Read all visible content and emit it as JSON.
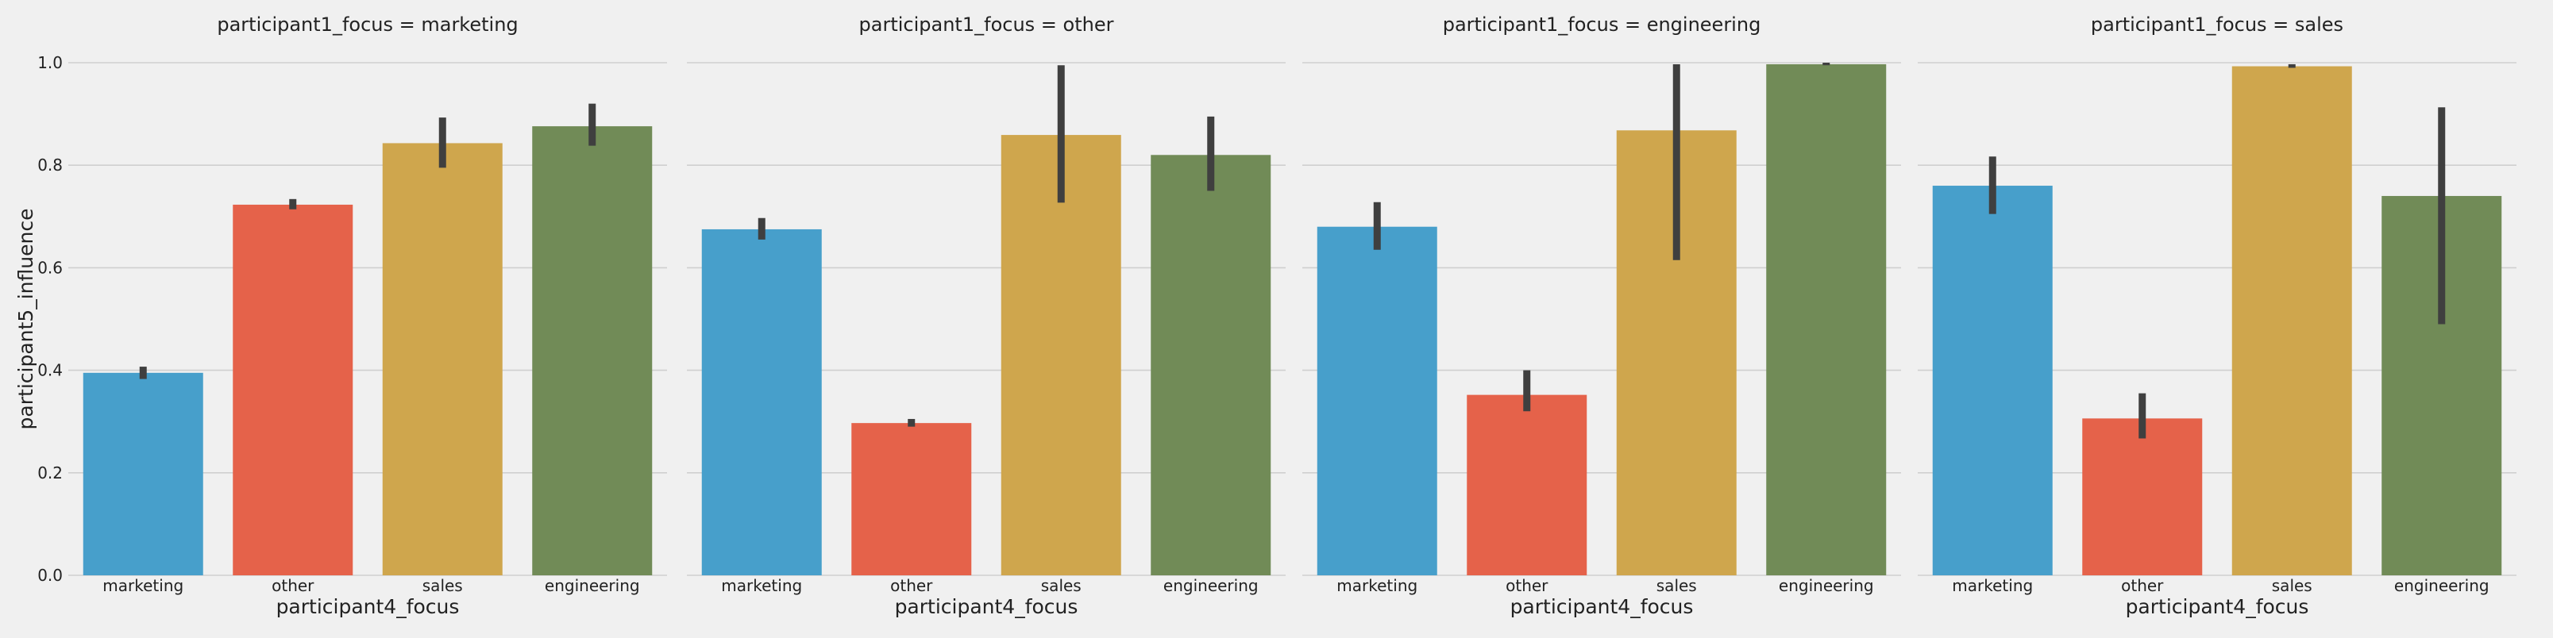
{
  "chart_data": {
    "type": "bar",
    "facet_variable": "participant1_focus",
    "xlabel": "participant4_focus",
    "ylabel": "participant5_influence",
    "ylim": [
      0,
      1.0
    ],
    "yticks": [
      "0.0",
      "0.2",
      "0.4",
      "0.6",
      "0.8",
      "1.0"
    ],
    "grid": true,
    "categories": [
      "marketing",
      "other",
      "sales",
      "engineering"
    ],
    "colors": {
      "marketing": "#479fcb",
      "other": "#e5624a",
      "sales": "#cfa64d",
      "engineering": "#718b57",
      "error_bar": "#3f3f3f",
      "grid": "#cfcfcf",
      "background": "#f0f0f0"
    },
    "panels": [
      {
        "title": "participant1_focus = marketing",
        "values": [
          0.395,
          0.723,
          0.843,
          0.876
        ],
        "ci_low": [
          0.383,
          0.714,
          0.795,
          0.838
        ],
        "ci_high": [
          0.407,
          0.734,
          0.893,
          0.92
        ]
      },
      {
        "title": "participant1_focus = other",
        "values": [
          0.675,
          0.297,
          0.859,
          0.82
        ],
        "ci_low": [
          0.655,
          0.29,
          0.727,
          0.75
        ],
        "ci_high": [
          0.697,
          0.305,
          0.995,
          0.895
        ]
      },
      {
        "title": "participant1_focus = engineering",
        "values": [
          0.68,
          0.352,
          0.868,
          0.997
        ],
        "ci_low": [
          0.635,
          0.32,
          0.615,
          0.995
        ],
        "ci_high": [
          0.728,
          0.4,
          0.997,
          1.0
        ]
      },
      {
        "title": "participant1_focus = sales",
        "values": [
          0.76,
          0.306,
          0.993,
          0.74
        ],
        "ci_low": [
          0.705,
          0.267,
          0.99,
          0.49
        ],
        "ci_high": [
          0.817,
          0.355,
          0.997,
          0.913
        ]
      }
    ]
  }
}
